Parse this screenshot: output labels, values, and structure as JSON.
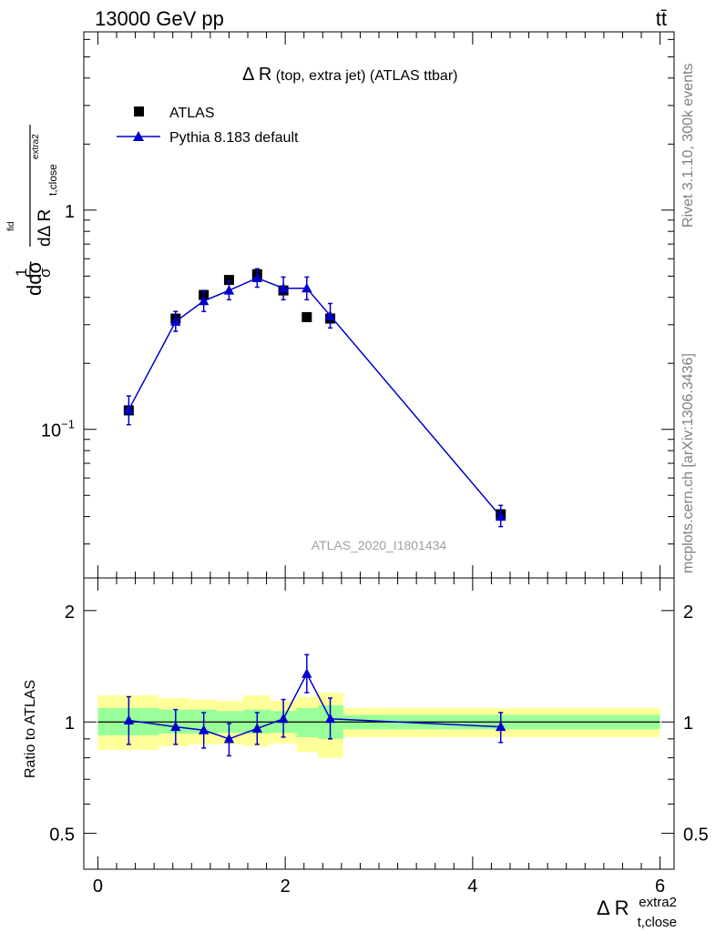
{
  "header": {
    "energy_label": "13000 GeV pp",
    "process_label": "tt̄"
  },
  "side_labels": {
    "rivet": "Rivet 3.1.10,  300k events",
    "mcplots": "mcplots.cern.ch [arXiv:1306.3436]"
  },
  "colors": {
    "mc": "#0000cc",
    "band_inner": "#99ff99",
    "band_outer": "#ffff99",
    "data": "#000000",
    "watermark": "#a0a0a0"
  },
  "chart_data": [
    {
      "type": "scatter",
      "panel": "main",
      "title": "Δ R (top, extra jet) (ATLAS ttbar)",
      "title_parts": {
        "symbol": "Δ R",
        "rest": " (top, extra jet) (ATLAS ttbar)"
      },
      "ylabel": "dσ/dΔ R_t,close^extra2 · 1/σ",
      "ylabel_parts": {
        "main": "ddσ",
        "inv": "1",
        "sigma": "σ",
        "fid": "fid",
        "denom": "dΔ R",
        "sub": "t,close",
        "sup": "extra2"
      },
      "y_scale": "log",
      "ylim": [
        0.021,
        6.5
      ],
      "xlim": [
        -0.15,
        6.15
      ],
      "y_tick_labels": [
        {
          "value": 1,
          "label": "1"
        },
        {
          "value": 0.1,
          "label": "10",
          "exp": "−1"
        }
      ],
      "watermark": "ATLAS_2020_I1801434",
      "legend": {
        "position": "top-left",
        "entries": [
          "ATLAS",
          "Pythia 8.183 default"
        ]
      },
      "series": [
        {
          "name": "ATLAS",
          "marker": "square",
          "points": [
            {
              "x": 0.33,
              "y": 0.122,
              "xlo": 0.0,
              "xhi": 0.65,
              "ylo": 0.115,
              "yhi": 0.13
            },
            {
              "x": 0.83,
              "y": 0.32,
              "xlo": 0.65,
              "xhi": 0.98,
              "ylo": 0.3,
              "yhi": 0.34
            },
            {
              "x": 1.13,
              "y": 0.41,
              "xlo": 0.98,
              "xhi": 1.27,
              "ylo": 0.39,
              "yhi": 0.43
            },
            {
              "x": 1.4,
              "y": 0.48,
              "xlo": 1.27,
              "xhi": 1.55,
              "ylo": 0.46,
              "yhi": 0.5
            },
            {
              "x": 1.7,
              "y": 0.51,
              "xlo": 1.55,
              "xhi": 1.84,
              "ylo": 0.49,
              "yhi": 0.53
            },
            {
              "x": 1.98,
              "y": 0.43,
              "xlo": 1.84,
              "xhi": 2.12,
              "ylo": 0.41,
              "yhi": 0.45
            },
            {
              "x": 2.23,
              "y": 0.325,
              "xlo": 2.12,
              "xhi": 2.35,
              "ylo": 0.31,
              "yhi": 0.34
            },
            {
              "x": 2.48,
              "y": 0.32,
              "xlo": 2.35,
              "xhi": 2.62,
              "ylo": 0.3,
              "yhi": 0.34
            },
            {
              "x": 4.3,
              "y": 0.041,
              "xlo": 2.62,
              "xhi": 6.0,
              "ylo": 0.039,
              "yhi": 0.043
            }
          ]
        },
        {
          "name": "Pythia 8.183 default",
          "marker": "triangle",
          "points": [
            {
              "x": 0.33,
              "y": 0.123,
              "ylo": 0.105,
              "yhi": 0.142
            },
            {
              "x": 0.83,
              "y": 0.31,
              "ylo": 0.28,
              "yhi": 0.345
            },
            {
              "x": 1.13,
              "y": 0.385,
              "ylo": 0.345,
              "yhi": 0.43
            },
            {
              "x": 1.4,
              "y": 0.43,
              "ylo": 0.39,
              "yhi": 0.475
            },
            {
              "x": 1.7,
              "y": 0.49,
              "ylo": 0.445,
              "yhi": 0.54
            },
            {
              "x": 1.98,
              "y": 0.44,
              "ylo": 0.39,
              "yhi": 0.495
            },
            {
              "x": 2.23,
              "y": 0.44,
              "ylo": 0.39,
              "yhi": 0.495
            },
            {
              "x": 2.48,
              "y": 0.33,
              "ylo": 0.29,
              "yhi": 0.375
            },
            {
              "x": 4.3,
              "y": 0.04,
              "ylo": 0.036,
              "yhi": 0.045
            }
          ]
        }
      ]
    },
    {
      "type": "scatter",
      "panel": "ratio",
      "ylabel": "Ratio to ATLAS",
      "xlabel": "Δ R_t,close^extra2",
      "xlabel_parts": {
        "main": "Δ R",
        "sub": "t,close",
        "sup": "extra2"
      },
      "y_scale": "log",
      "ylim": [
        0.4,
        2.45
      ],
      "xlim": [
        -0.15,
        6.15
      ],
      "x_tick_labels": [
        {
          "value": 0,
          "label": "0"
        },
        {
          "value": 2,
          "label": "2"
        },
        {
          "value": 4,
          "label": "4"
        },
        {
          "value": 6,
          "label": "6"
        }
      ],
      "y_tick_labels": [
        {
          "value": 0.5,
          "label": "0.5"
        },
        {
          "value": 1,
          "label": "1"
        },
        {
          "value": 2,
          "label": "2"
        }
      ],
      "bands": [
        {
          "xlo": 0.0,
          "xhi": 0.65,
          "inner": [
            0.92,
            1.09
          ],
          "outer": [
            0.84,
            1.18
          ]
        },
        {
          "xlo": 0.65,
          "xhi": 0.98,
          "inner": [
            0.93,
            1.08
          ],
          "outer": [
            0.86,
            1.16
          ]
        },
        {
          "xlo": 0.98,
          "xhi": 1.27,
          "inner": [
            0.93,
            1.08
          ],
          "outer": [
            0.87,
            1.15
          ]
        },
        {
          "xlo": 1.27,
          "xhi": 1.55,
          "inner": [
            0.935,
            1.07
          ],
          "outer": [
            0.87,
            1.14
          ]
        },
        {
          "xlo": 1.55,
          "xhi": 1.84,
          "inner": [
            0.93,
            1.08
          ],
          "outer": [
            0.86,
            1.18
          ]
        },
        {
          "xlo": 1.84,
          "xhi": 2.12,
          "inner": [
            0.935,
            1.07
          ],
          "outer": [
            0.875,
            1.14
          ]
        },
        {
          "xlo": 2.12,
          "xhi": 2.35,
          "inner": [
            0.91,
            1.09
          ],
          "outer": [
            0.83,
            1.17
          ]
        },
        {
          "xlo": 2.35,
          "xhi": 2.62,
          "inner": [
            0.9,
            1.11
          ],
          "outer": [
            0.8,
            1.2
          ]
        },
        {
          "xlo": 2.62,
          "xhi": 6.0,
          "inner": [
            0.955,
            1.045
          ],
          "outer": [
            0.91,
            1.09
          ]
        }
      ],
      "series": [
        {
          "name": "Pythia 8.183 default / ATLAS",
          "marker": "triangle",
          "points": [
            {
              "x": 0.33,
              "y": 1.01,
              "ylo": 0.87,
              "yhi": 1.17
            },
            {
              "x": 0.83,
              "y": 0.97,
              "ylo": 0.87,
              "yhi": 1.08
            },
            {
              "x": 1.13,
              "y": 0.95,
              "ylo": 0.85,
              "yhi": 1.06
            },
            {
              "x": 1.4,
              "y": 0.9,
              "ylo": 0.81,
              "yhi": 0.99
            },
            {
              "x": 1.7,
              "y": 0.96,
              "ylo": 0.87,
              "yhi": 1.06
            },
            {
              "x": 1.98,
              "y": 1.02,
              "ylo": 0.91,
              "yhi": 1.15
            },
            {
              "x": 2.23,
              "y": 1.35,
              "ylo": 1.2,
              "yhi": 1.52
            },
            {
              "x": 2.48,
              "y": 1.02,
              "ylo": 0.9,
              "yhi": 1.16
            },
            {
              "x": 4.3,
              "y": 0.97,
              "ylo": 0.88,
              "yhi": 1.06
            }
          ]
        }
      ]
    }
  ]
}
